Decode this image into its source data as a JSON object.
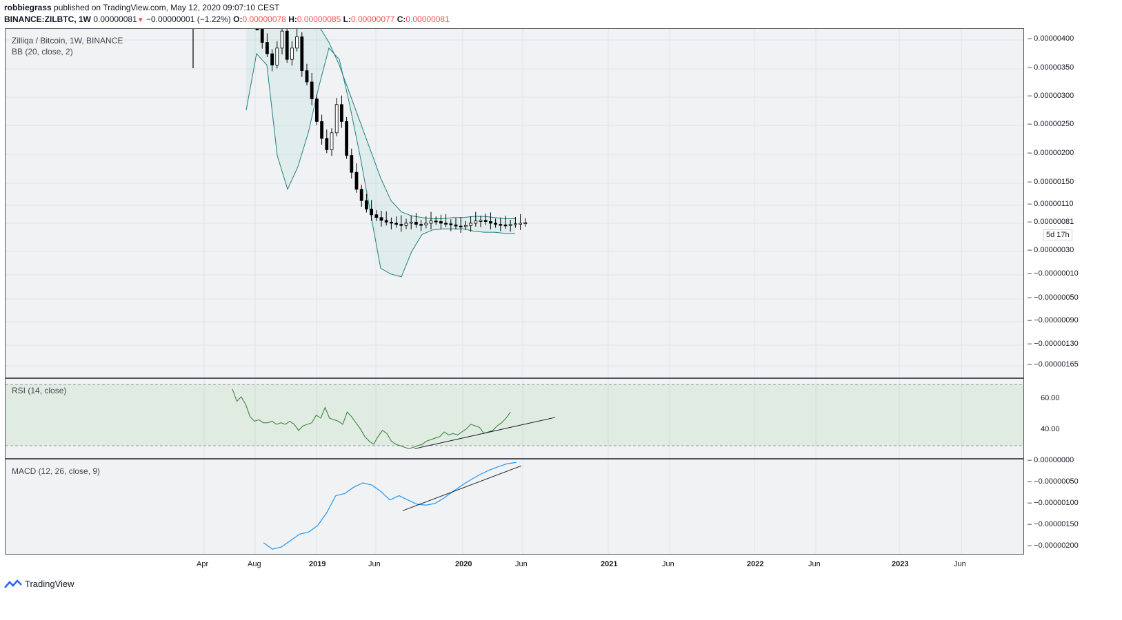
{
  "header": {
    "author": "robbiegrass",
    "published": "published on TradingView.com, May 12, 2020 09:07:10 CEST",
    "symbol": "BINANCE:ZILBTC, 1W",
    "last": "0.00000081",
    "change": "−0.00000001 (−1.22%)",
    "o_label": "O:",
    "o_value": "0.00000078",
    "h_label": "H:",
    "h_value": "0.00000085",
    "l_label": "L:",
    "l_value": "0.00000077",
    "c_label": "C:",
    "c_value": "0.00000081"
  },
  "chart_data": [
    {
      "type": "candlestick",
      "title": "Zilliqa / Bitcoin, 1W, BINANCE",
      "indicator": "BB (20, close, 2)",
      "y_ticks": [
        "0.00000400",
        "0.00000350",
        "0.00000300",
        "0.00000250",
        "0.00000200",
        "0.00000150",
        "0.00000110",
        "0.00000081",
        "0.00000030",
        "−0.00000010",
        "−0.00000050",
        "−0.00000090",
        "−0.00000130",
        "−0.00000165"
      ],
      "last_price": "0.00000081",
      "countdown": "5d 17h",
      "x_ticks": [
        "Apr",
        "Aug",
        "2019",
        "Jun",
        "2020",
        "Jun",
        "2021",
        "Jun",
        "2022",
        "Jun",
        "2023",
        "Jun"
      ],
      "close_series": [
        4.3,
        4.0,
        3.8,
        3.6,
        3.9,
        4.2,
        3.7,
        3.9,
        4.1,
        3.5,
        3.3,
        3.0,
        2.6,
        2.3,
        2.1,
        2.4,
        2.9,
        2.6,
        2.0,
        1.7,
        1.4,
        1.2,
        1.05,
        0.95,
        0.9,
        0.85,
        0.82,
        0.8,
        0.78,
        0.76,
        0.8,
        0.82,
        0.78,
        0.77,
        0.8,
        0.84,
        0.83,
        0.8,
        0.79,
        0.77,
        0.75,
        0.74,
        0.76,
        0.8,
        0.84,
        0.85,
        0.83,
        0.8,
        0.78,
        0.77,
        0.76,
        0.78,
        0.79,
        0.8,
        0.81
      ],
      "bb_upper": [
        4.5,
        4.5,
        4.45,
        4.4,
        4.4,
        4.4,
        4.4,
        4.3,
        4.0,
        3.6,
        3.1,
        2.6,
        2.1,
        1.6,
        1.2,
        1.0,
        0.93,
        0.9,
        0.88,
        0.88,
        0.9,
        0.9,
        0.92,
        0.92,
        0.9,
        0.88,
        0.88
      ],
      "bb_lower": [
        2.8,
        3.8,
        3.6,
        2.0,
        1.4,
        1.8,
        2.4,
        3.2,
        3.9,
        3.7,
        2.9,
        2.0,
        1.0,
        0.0,
        -0.1,
        -0.15,
        0.3,
        0.6,
        0.68,
        0.7,
        0.7,
        0.7,
        0.66,
        0.64,
        0.64,
        0.62,
        0.62
      ]
    },
    {
      "type": "line",
      "indicator": "RSI (14, close)",
      "y_ticks": [
        "60.00",
        "40.00"
      ],
      "upper_band": 70,
      "lower_band": 30,
      "values": [
        67,
        59,
        62,
        57,
        49,
        46,
        47,
        45,
        45,
        46,
        44,
        45,
        44,
        46,
        44,
        40,
        43,
        44,
        45,
        50,
        48,
        55,
        48,
        47,
        46,
        44,
        52,
        49,
        45,
        41,
        36,
        33,
        31,
        36,
        40,
        38,
        33,
        31,
        30,
        29,
        28,
        29,
        30,
        31,
        33,
        34,
        35,
        36,
        39,
        37,
        38,
        37,
        39,
        41,
        44,
        43,
        42,
        38,
        39,
        40,
        43,
        45,
        48,
        52
      ]
    },
    {
      "type": "line",
      "indicator": "MACD (12, 26, close, 9)",
      "y_ticks": [
        "0.00000000",
        "−0.00000050",
        "−0.00000100",
        "−0.00000150",
        "−0.00000200"
      ],
      "values": [
        -190,
        -205,
        -200,
        -185,
        -170,
        -165,
        -150,
        -120,
        -80,
        -75,
        -60,
        -50,
        -55,
        -70,
        -90,
        -80,
        -90,
        -100,
        -102,
        -98,
        -85,
        -70,
        -55,
        -42,
        -30,
        -20,
        -12,
        -5,
        -2
      ]
    }
  ],
  "footer": {
    "brand": "TradingView"
  }
}
